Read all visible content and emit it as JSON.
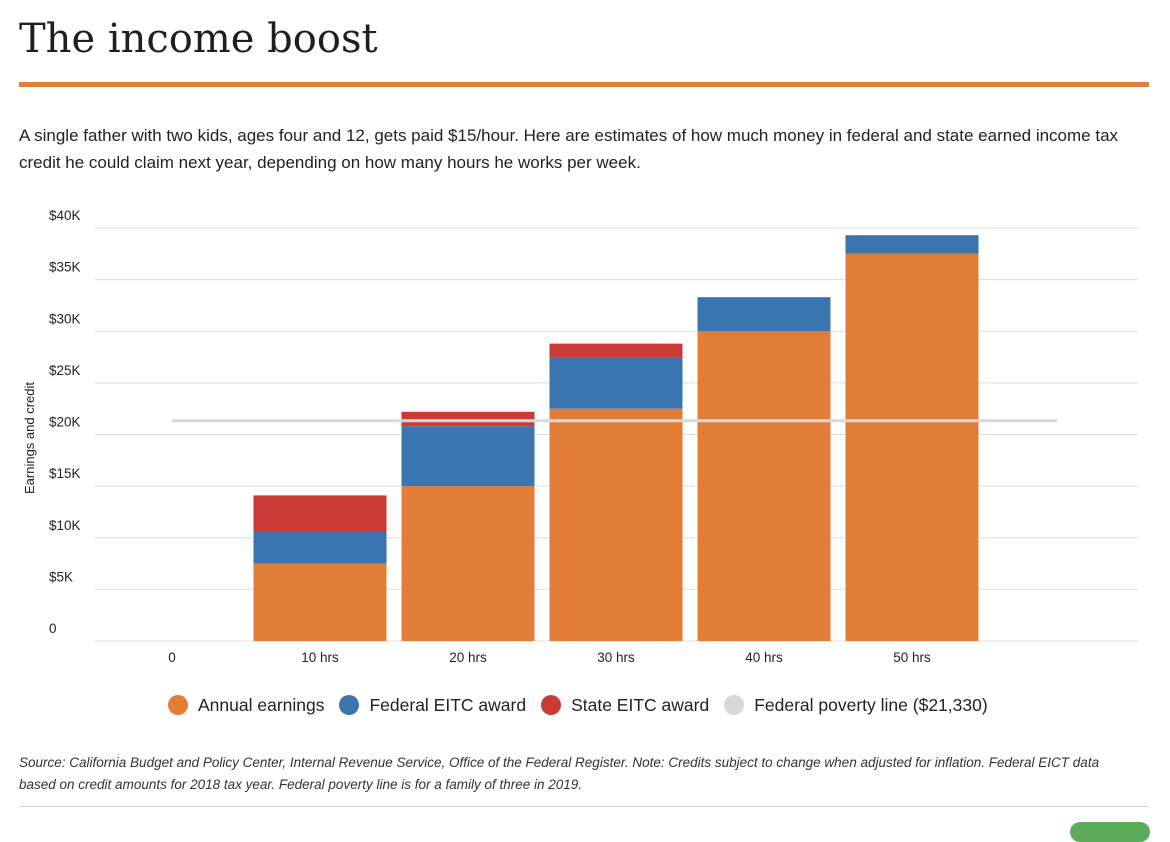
{
  "title": "The income boost",
  "subtitle": "A single father with two kids, ages four and 12, gets paid $15/hour. Here are estimates of how much money in federal and state earned income tax credit he could claim next year, depending on how many hours he works per week.",
  "source": "Source: California Budget and Policy Center, Internal Revenue Service, Office of the Federal Register. Note: Credits subject to change when adjusted for inflation. Federal EICT data based on credit amounts for 2018 tax year. Federal poverty line is for a family of three in 2019.",
  "chart_data": {
    "type": "bar",
    "stacked": true,
    "ylabel": "Earnings and credit",
    "categories": [
      "0",
      "10 hrs",
      "20 hrs",
      "30 hrs",
      "40 hrs",
      "50 hrs"
    ],
    "ylim": [
      0,
      40000
    ],
    "yticks": [
      0,
      5000,
      10000,
      15000,
      20000,
      25000,
      30000,
      35000,
      40000
    ],
    "ytick_labels": [
      "0",
      "$5K",
      "$10K",
      "$15K",
      "$20K",
      "$25K",
      "$30K",
      "$35K",
      "$40K"
    ],
    "series": [
      {
        "name": "Annual earnings",
        "color": "#e27d37",
        "values": [
          0,
          7500,
          15000,
          22500,
          30000,
          37500
        ]
      },
      {
        "name": "Federal EITC award",
        "color": "#3a75b0",
        "values": [
          0,
          3100,
          5800,
          5000,
          3300,
          1800
        ]
      },
      {
        "name": "State EITC award",
        "color": "#c93b34",
        "values": [
          0,
          3500,
          1400,
          1300,
          0,
          0
        ]
      }
    ],
    "reference_line": {
      "name": "Federal poverty line ($21,330)",
      "value": 21330,
      "color": "#d8d8d8"
    },
    "grid": true,
    "legend_position": "bottom"
  }
}
